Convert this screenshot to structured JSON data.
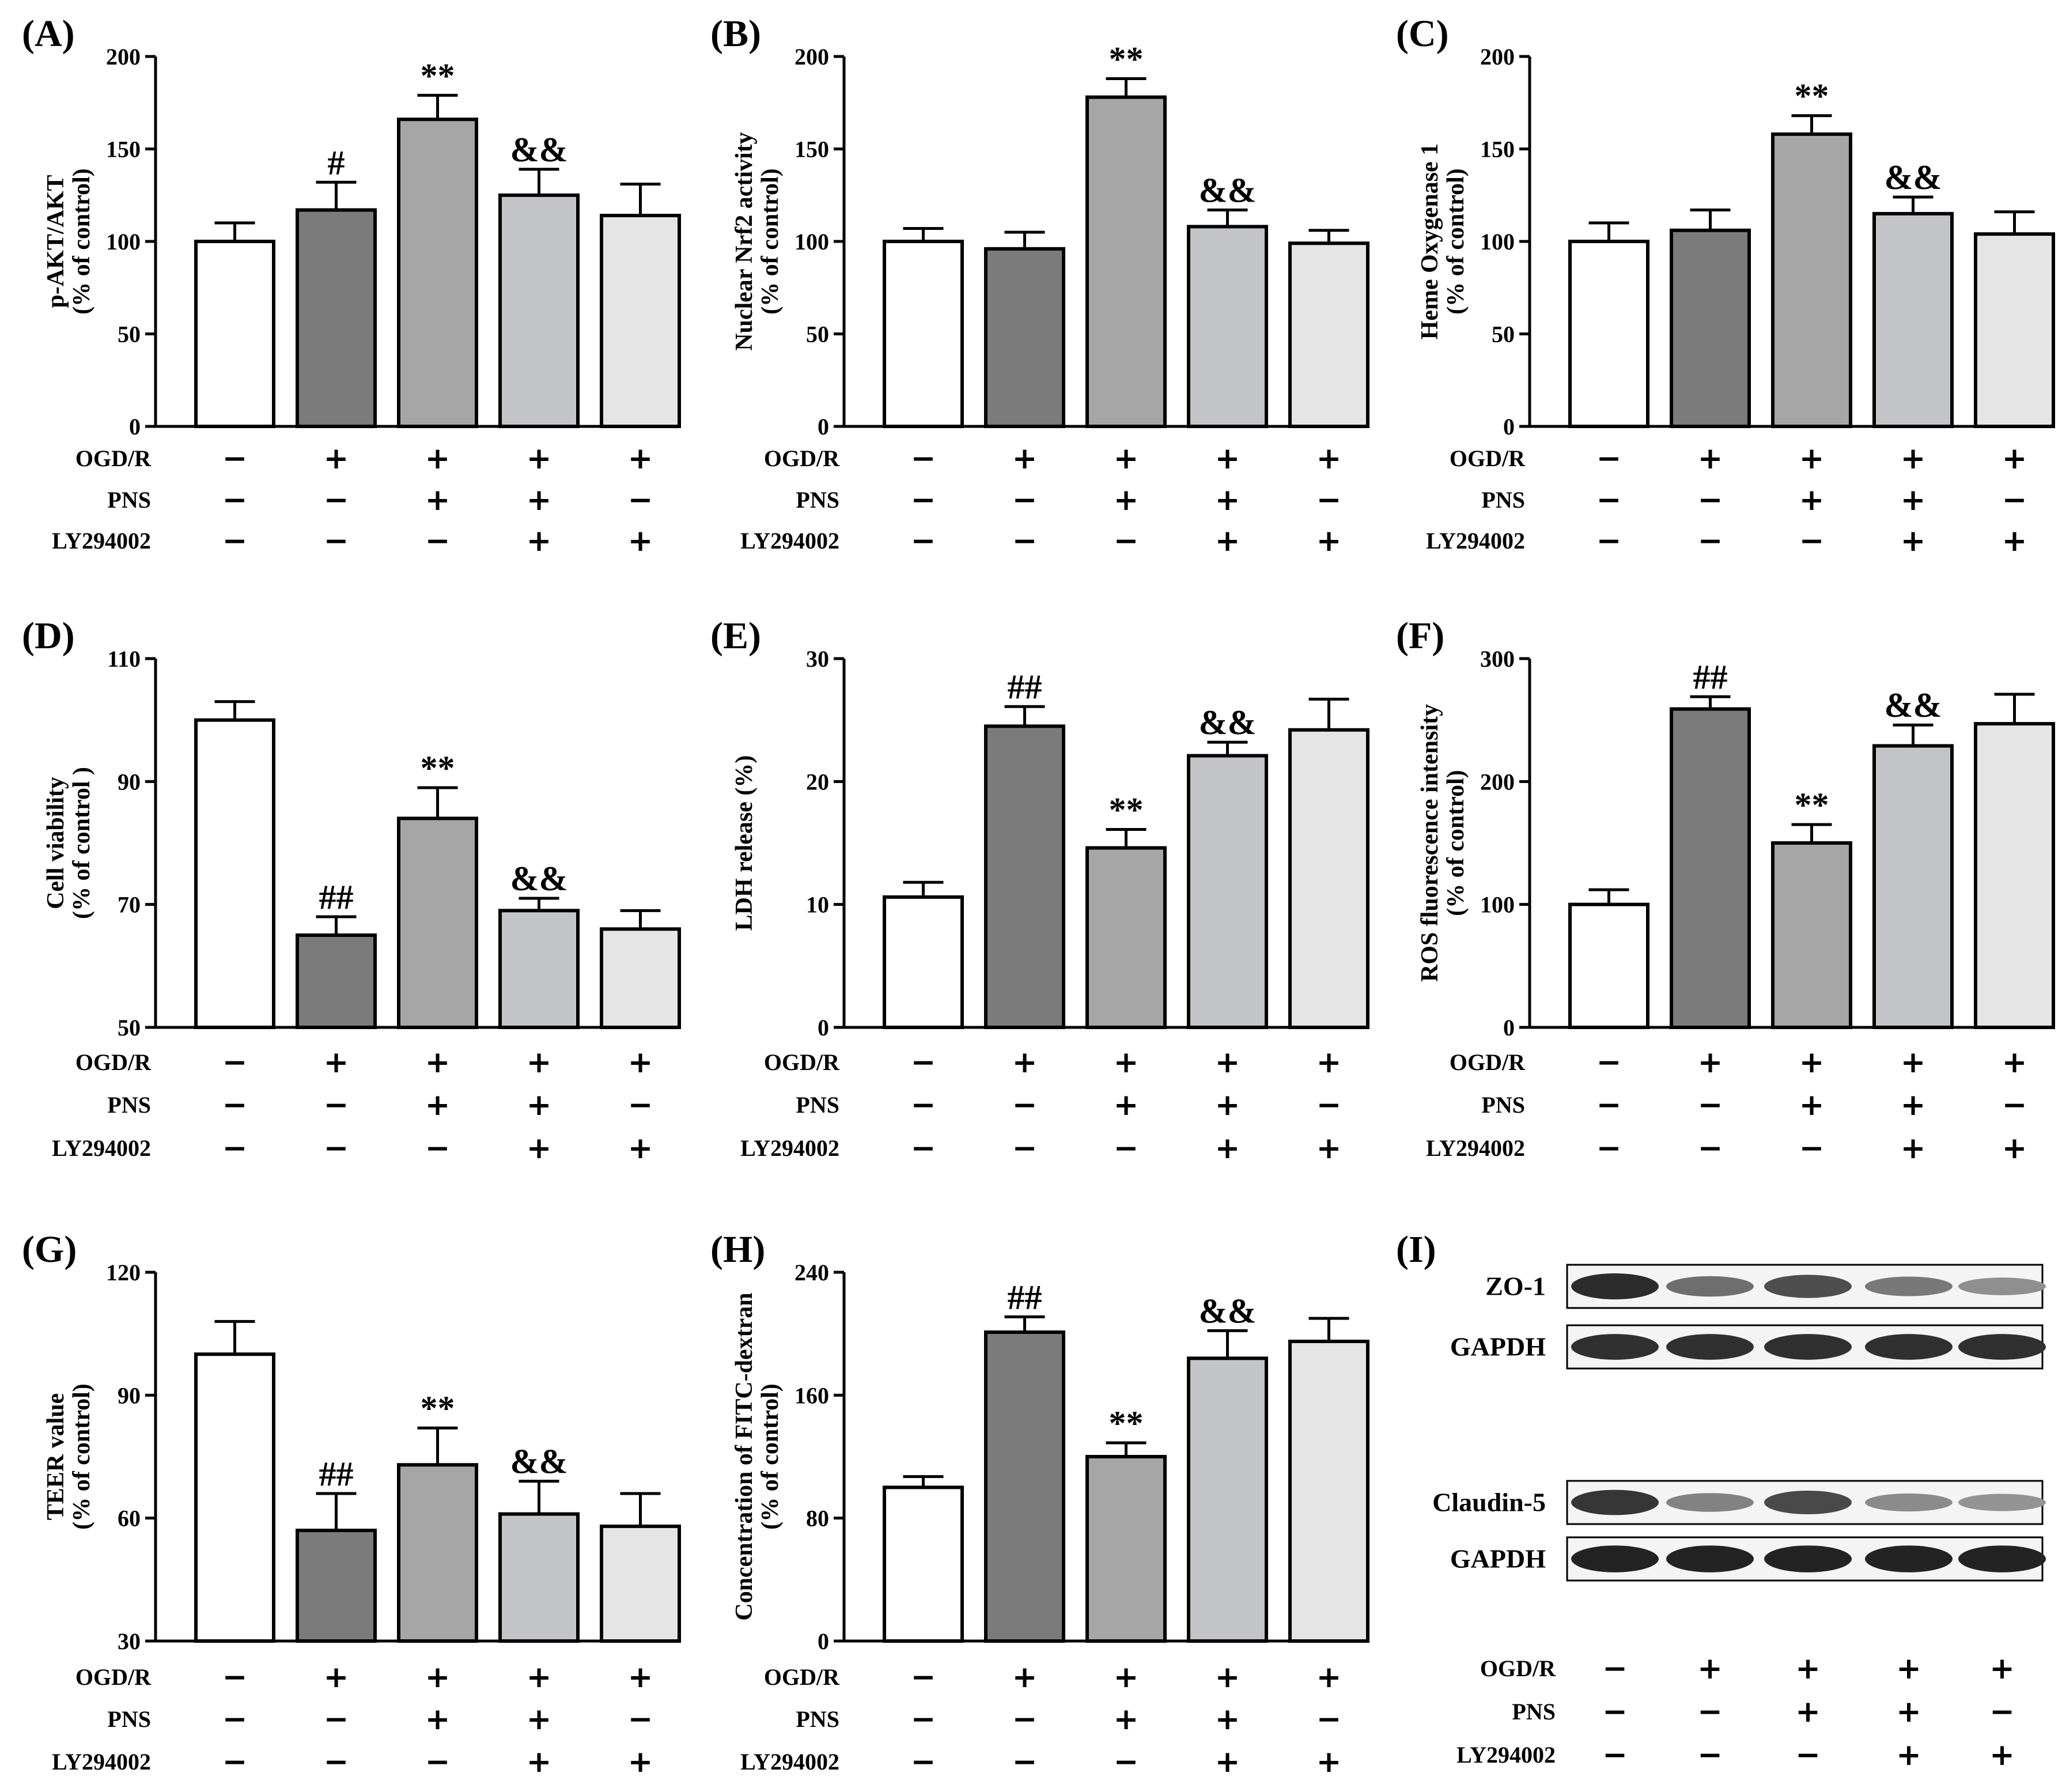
{
  "figure": {
    "conditions": {
      "row_labels": [
        "OGD/R",
        "PNS",
        "LY294002"
      ],
      "matrix": [
        [
          "−",
          "+",
          "+",
          "+",
          "+"
        ],
        [
          "−",
          "−",
          "+",
          "+",
          "−"
        ],
        [
          "−",
          "−",
          "−",
          "+",
          "+"
        ]
      ]
    },
    "bar_colors": [
      "#ffffff",
      "#7b7b7b",
      "#a6a6a6",
      "#c2c4c7",
      "#e4e5e4"
    ]
  },
  "chart_data": [
    {
      "id": "A",
      "type": "bar",
      "panel_label": "(A)",
      "ylabel": "p-AKT/AKT",
      "ylabel2": "(% of control)",
      "ylim": [
        0,
        200
      ],
      "ticks": [
        0,
        50,
        100,
        150,
        200
      ],
      "values": [
        100,
        117,
        166,
        125,
        114
      ],
      "errors": [
        10,
        15,
        13,
        14,
        17
      ],
      "annotations": [
        "",
        "#",
        "**",
        "&&",
        ""
      ]
    },
    {
      "id": "B",
      "type": "bar",
      "panel_label": "(B)",
      "ylabel": "Nuclear Nrf2 activity",
      "ylabel2": "(% of control)",
      "ylim": [
        0,
        200
      ],
      "ticks": [
        0,
        50,
        100,
        150,
        200
      ],
      "values": [
        100,
        96,
        178,
        108,
        99
      ],
      "errors": [
        7,
        9,
        10,
        9,
        7
      ],
      "annotations": [
        "",
        "",
        "**",
        "&&",
        ""
      ]
    },
    {
      "id": "C",
      "type": "bar",
      "panel_label": "(C)",
      "ylabel": "Heme Oxygenase 1",
      "ylabel2": "(% of control)",
      "ylim": [
        0,
        200
      ],
      "ticks": [
        0,
        50,
        100,
        150,
        200
      ],
      "values": [
        100,
        106,
        158,
        115,
        104
      ],
      "errors": [
        10,
        11,
        10,
        9,
        12
      ],
      "annotations": [
        "",
        "",
        "**",
        "&&",
        ""
      ]
    },
    {
      "id": "D",
      "type": "bar",
      "panel_label": "(D)",
      "ylabel": "Cell viability",
      "ylabel2": "(% of control )",
      "ylim": [
        50,
        110
      ],
      "ticks": [
        50,
        70,
        90,
        110
      ],
      "values": [
        100,
        65,
        84,
        69,
        66
      ],
      "errors": [
        3,
        3,
        5,
        2,
        3
      ],
      "annotations": [
        "",
        "##",
        "**",
        "&&",
        ""
      ]
    },
    {
      "id": "E",
      "type": "bar",
      "panel_label": "(E)",
      "ylabel": "LDH release (%)",
      "ylabel2": "",
      "ylim": [
        0,
        30
      ],
      "ticks": [
        0,
        10,
        20,
        30
      ],
      "values": [
        10.6,
        24.5,
        14.6,
        22.1,
        24.2
      ],
      "errors": [
        1.2,
        1.6,
        1.5,
        1.1,
        2.5
      ],
      "annotations": [
        "",
        "##",
        "**",
        "&&",
        ""
      ]
    },
    {
      "id": "F",
      "type": "bar",
      "panel_label": "(F)",
      "ylabel": "ROS fluorescence intensity",
      "ylabel2": "(% of control)",
      "ylim": [
        0,
        300
      ],
      "ticks": [
        0,
        100,
        200,
        300
      ],
      "values": [
        100,
        259,
        150,
        229,
        247
      ],
      "errors": [
        12,
        10,
        15,
        17,
        24
      ],
      "annotations": [
        "",
        "##",
        "**",
        "&&",
        ""
      ]
    },
    {
      "id": "G",
      "type": "bar",
      "panel_label": "(G)",
      "ylabel": "TEER value",
      "ylabel2": "(% of control)",
      "ylim": [
        30,
        120
      ],
      "ticks": [
        30,
        60,
        90,
        120
      ],
      "values": [
        100,
        57,
        73,
        61,
        58
      ],
      "errors": [
        8,
        9,
        9,
        8,
        8
      ],
      "annotations": [
        "",
        "##",
        "**",
        "&&",
        ""
      ]
    },
    {
      "id": "H",
      "type": "bar",
      "panel_label": "(H)",
      "ylabel": "Concentration of FITC-dextran",
      "ylabel2": "(% of control)",
      "ylim": [
        0,
        240
      ],
      "ticks": [
        0,
        80,
        160,
        240
      ],
      "values": [
        100,
        201,
        120,
        184,
        195
      ],
      "errors": [
        7,
        10,
        9,
        18,
        15
      ],
      "annotations": [
        "",
        "##",
        "**",
        "&&",
        ""
      ]
    }
  ],
  "blot_panel": {
    "panel_label": "(I)",
    "rows": [
      {
        "label": "ZO-1",
        "intensities": [
          0.9,
          0.55,
          0.72,
          0.5,
          0.38
        ]
      },
      {
        "label": "GAPDH",
        "intensities": [
          0.88,
          0.88,
          0.88,
          0.88,
          0.88
        ]
      },
      {
        "label": "Claudin-5",
        "intensities": [
          0.85,
          0.45,
          0.75,
          0.4,
          0.36
        ]
      },
      {
        "label": "GAPDH",
        "intensities": [
          0.95,
          0.95,
          0.95,
          0.95,
          0.95
        ]
      }
    ]
  }
}
